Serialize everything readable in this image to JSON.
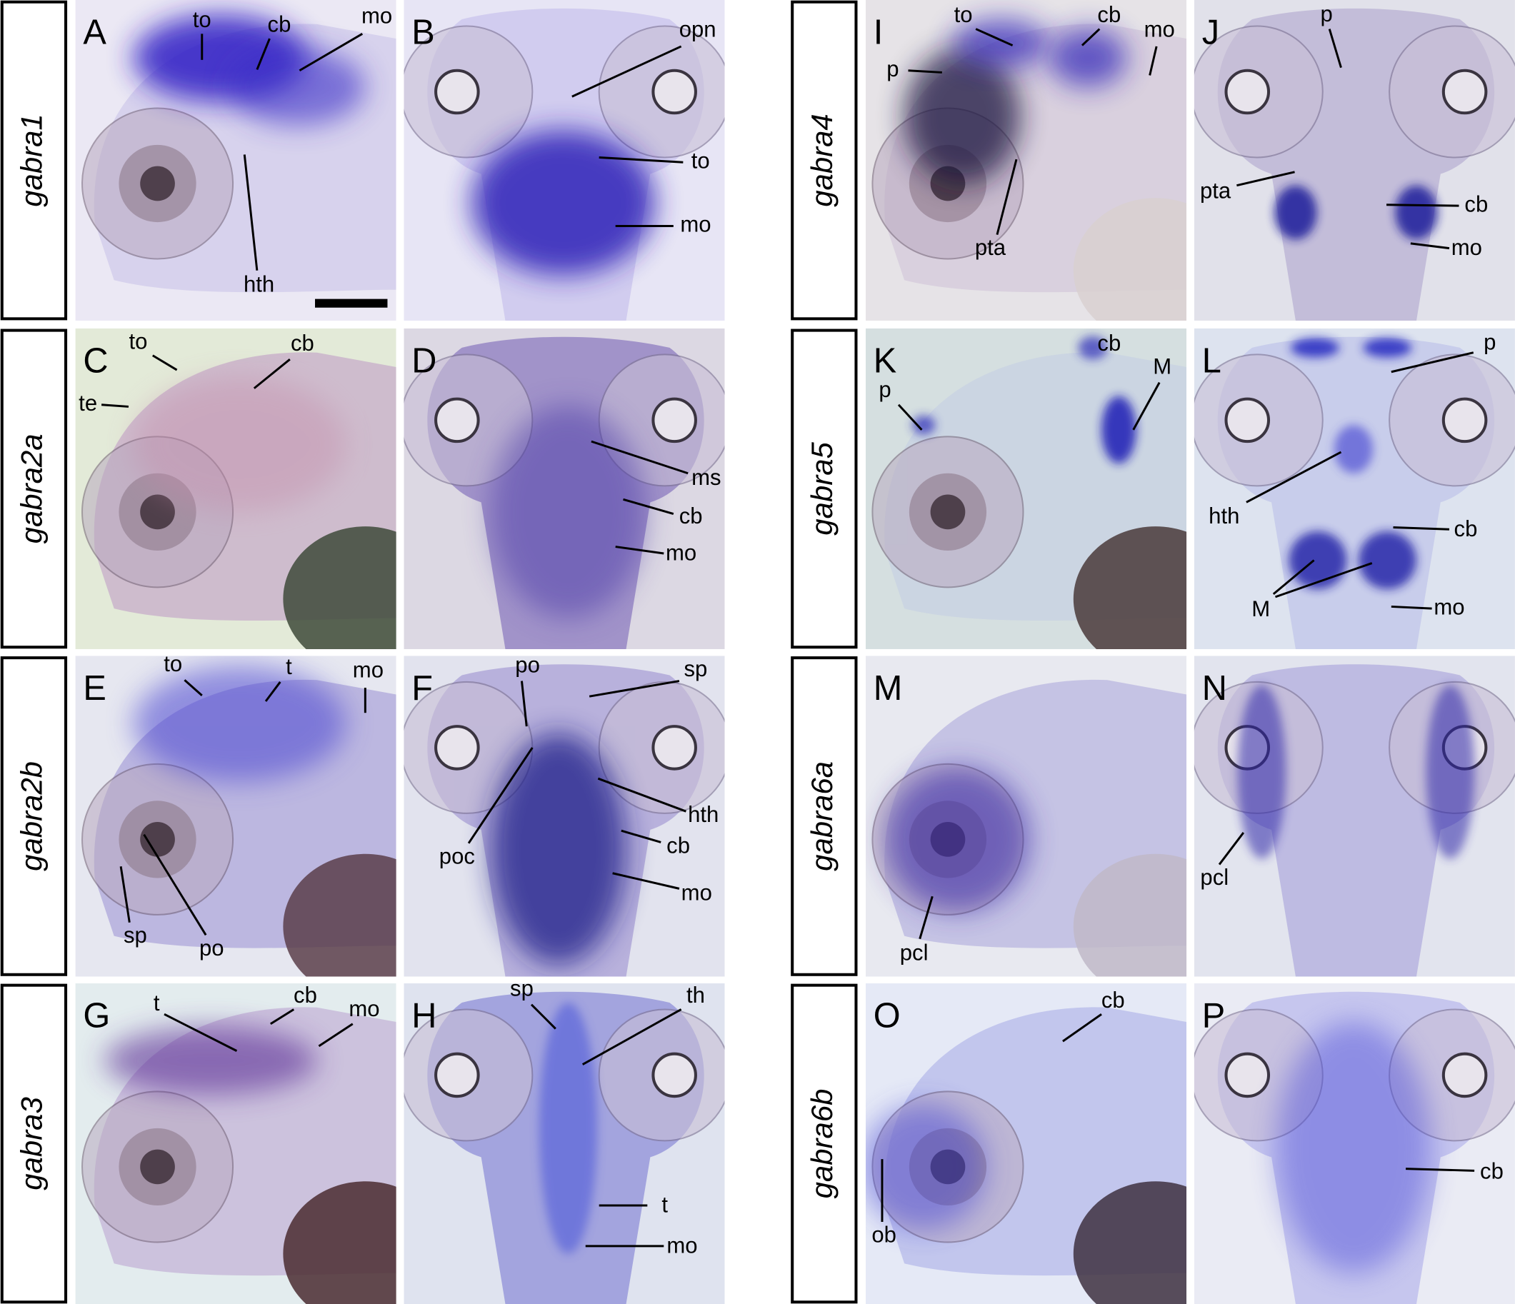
{
  "rows": [
    {
      "gene": "gabra1",
      "panels": [
        {
          "letter": "A",
          "labels": [
            "to",
            "cb",
            "mo",
            "hth"
          ]
        },
        {
          "letter": "B",
          "labels": [
            "opn",
            "to",
            "mo"
          ]
        }
      ]
    },
    {
      "gene": "gabra2a",
      "panels": [
        {
          "letter": "C",
          "labels": [
            "to",
            "cb",
            "te"
          ]
        },
        {
          "letter": "D",
          "labels": [
            "ms",
            "cb",
            "mo"
          ]
        }
      ]
    },
    {
      "gene": "gabra2b",
      "panels": [
        {
          "letter": "E",
          "labels": [
            "to",
            "t",
            "mo",
            "sp",
            "po"
          ]
        },
        {
          "letter": "F",
          "labels": [
            "po",
            "sp",
            "hth",
            "cb",
            "mo",
            "poc"
          ]
        }
      ]
    },
    {
      "gene": "gabra3",
      "panels": [
        {
          "letter": "G",
          "labels": [
            "t",
            "cb",
            "mo"
          ]
        },
        {
          "letter": "H",
          "labels": [
            "sp",
            "th",
            "t",
            "mo"
          ]
        }
      ]
    },
    {
      "gene": "gabra4",
      "panels": [
        {
          "letter": "I",
          "labels": [
            "to",
            "cb",
            "mo",
            "p",
            "pta"
          ]
        },
        {
          "letter": "J",
          "labels": [
            "p",
            "pta",
            "cb",
            "mo"
          ]
        }
      ]
    },
    {
      "gene": "gabra5",
      "panels": [
        {
          "letter": "K",
          "labels": [
            "cb",
            "M",
            "p"
          ]
        },
        {
          "letter": "L",
          "labels": [
            "p",
            "hth",
            "cb",
            "M",
            "mo"
          ]
        }
      ]
    },
    {
      "gene": "gabra6a",
      "panels": [
        {
          "letter": "M",
          "labels": [
            "pcl"
          ]
        },
        {
          "letter": "N",
          "labels": [
            "pcl"
          ]
        }
      ]
    },
    {
      "gene": "gabra6b",
      "panels": [
        {
          "letter": "O",
          "labels": [
            "cb",
            "ob"
          ]
        },
        {
          "letter": "P",
          "labels": [
            "cb"
          ]
        }
      ]
    }
  ]
}
